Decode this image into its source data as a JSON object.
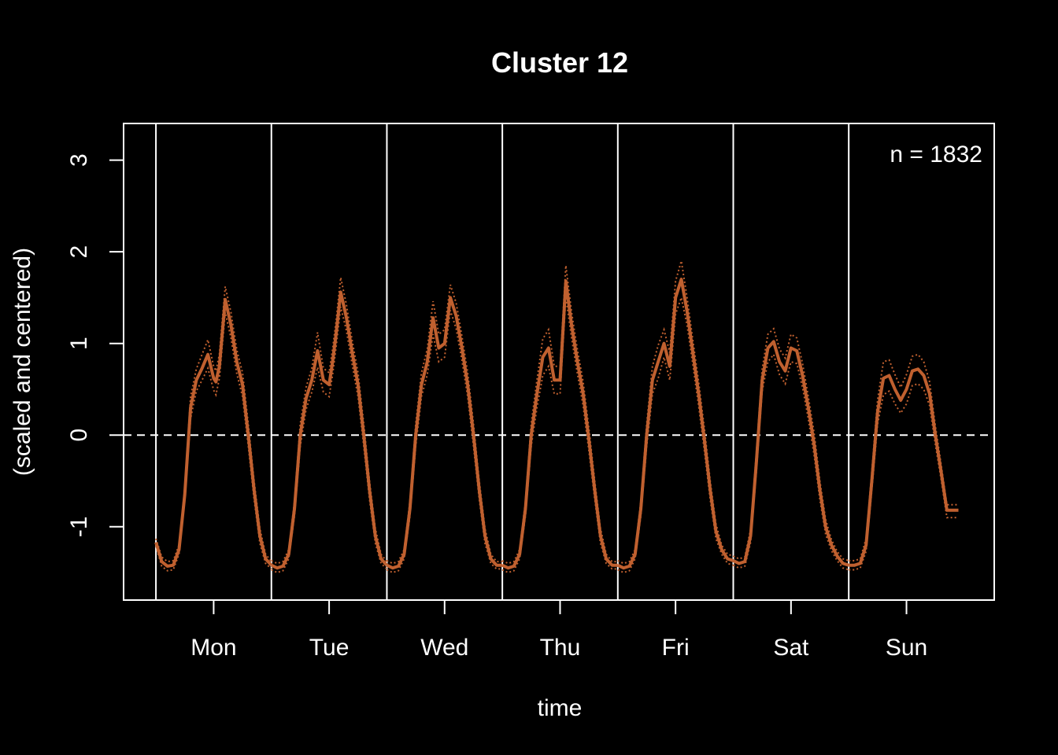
{
  "chart_data": {
    "type": "line",
    "title": "Cluster 12",
    "xlabel": "time",
    "ylabel_line1": "",
    "ylabel_line2": "(scaled and centered)",
    "annotation": "n = 1832",
    "x_tick_labels": [
      "Mon",
      "Tue",
      "Wed",
      "Thu",
      "Fri",
      "Sat",
      "Sun"
    ],
    "y_ticks": [
      -1,
      0,
      1,
      2,
      3
    ],
    "y_tick_labels": [
      "-1",
      "0",
      "1",
      "2",
      "3"
    ],
    "ylim": [
      -1.8,
      3.4
    ],
    "xlim": [
      -0.28,
      7.26
    ],
    "reference_line": 0,
    "day_separators": [
      0,
      1,
      2,
      3,
      4,
      5,
      6
    ],
    "line_color": "#c0602f",
    "band_color": "#c0602f",
    "frame_color": "#ffffff",
    "background": "#000000",
    "day_profiles": [
      {
        "day": "Mon",
        "x": [
          0.0,
          0.05,
          0.1,
          0.15,
          0.2,
          0.25,
          0.3,
          0.35,
          0.4,
          0.45,
          0.5,
          0.52,
          0.55,
          0.6,
          0.65,
          0.7,
          0.75,
          0.8,
          0.85,
          0.9,
          0.95,
          1.0
        ],
        "y": [
          -1.17,
          -1.38,
          -1.43,
          -1.42,
          -1.25,
          -0.65,
          0.3,
          0.6,
          0.73,
          0.88,
          0.62,
          0.58,
          0.75,
          1.48,
          1.2,
          0.8,
          0.55,
          0.0,
          -0.6,
          -1.1,
          -1.35,
          -1.42
        ],
        "hi": [
          -1.13,
          -1.33,
          -1.38,
          -1.37,
          -1.2,
          -0.58,
          0.42,
          0.72,
          0.88,
          1.04,
          0.75,
          0.7,
          0.88,
          1.62,
          1.34,
          0.93,
          0.68,
          0.12,
          -0.5,
          -1.02,
          -1.3,
          -1.38
        ],
        "lo": [
          -1.21,
          -1.43,
          -1.48,
          -1.47,
          -1.3,
          -0.72,
          0.18,
          0.48,
          0.6,
          0.73,
          0.49,
          0.44,
          0.62,
          1.34,
          1.06,
          0.67,
          0.42,
          -0.12,
          -0.7,
          -1.18,
          -1.4,
          -1.46
        ]
      },
      {
        "day": "Tue",
        "x": [
          0.0,
          0.05,
          0.1,
          0.15,
          0.2,
          0.25,
          0.3,
          0.35,
          0.4,
          0.45,
          0.5,
          0.53,
          0.56,
          0.6,
          0.65,
          0.7,
          0.75,
          0.8,
          0.85,
          0.9,
          0.95,
          1.0
        ],
        "y": [
          -1.42,
          -1.45,
          -1.43,
          -1.3,
          -0.8,
          0.0,
          0.4,
          0.6,
          0.92,
          0.6,
          0.55,
          0.8,
          1.1,
          1.56,
          1.28,
          0.9,
          0.55,
          0.0,
          -0.6,
          -1.1,
          -1.35,
          -1.42
        ],
        "hi": [
          -1.37,
          -1.4,
          -1.38,
          -1.25,
          -0.72,
          0.12,
          0.52,
          0.73,
          1.12,
          0.73,
          0.68,
          0.94,
          1.24,
          1.72,
          1.42,
          1.03,
          0.68,
          0.12,
          -0.5,
          -1.02,
          -1.3,
          -1.38
        ],
        "lo": [
          -1.47,
          -1.5,
          -1.48,
          -1.35,
          -0.88,
          -0.12,
          0.28,
          0.47,
          0.74,
          0.47,
          0.42,
          0.66,
          0.96,
          1.4,
          1.14,
          0.77,
          0.42,
          -0.12,
          -0.7,
          -1.18,
          -1.4,
          -1.46
        ]
      },
      {
        "day": "Wed",
        "x": [
          0.0,
          0.05,
          0.1,
          0.15,
          0.2,
          0.25,
          0.3,
          0.35,
          0.4,
          0.45,
          0.5,
          0.55,
          0.6,
          0.65,
          0.7,
          0.75,
          0.8,
          0.85,
          0.9,
          0.95,
          1.0
        ],
        "y": [
          -1.42,
          -1.45,
          -1.43,
          -1.3,
          -0.8,
          0.0,
          0.55,
          0.8,
          1.28,
          0.95,
          1.0,
          1.5,
          1.3,
          0.95,
          0.55,
          0.0,
          -0.6,
          -1.1,
          -1.35,
          -1.42,
          -1.42
        ],
        "hi": [
          -1.37,
          -1.4,
          -1.38,
          -1.25,
          -0.72,
          0.12,
          0.68,
          0.94,
          1.46,
          1.1,
          1.15,
          1.64,
          1.44,
          1.08,
          0.68,
          0.12,
          -0.5,
          -1.02,
          -1.3,
          -1.38,
          -1.38
        ],
        "lo": [
          -1.47,
          -1.5,
          -1.48,
          -1.35,
          -0.88,
          -0.12,
          0.42,
          0.66,
          1.1,
          0.8,
          0.85,
          1.36,
          1.16,
          0.82,
          0.42,
          -0.12,
          -0.7,
          -1.18,
          -1.4,
          -1.46,
          -1.46
        ]
      },
      {
        "day": "Thu",
        "x": [
          0.0,
          0.05,
          0.1,
          0.15,
          0.2,
          0.25,
          0.3,
          0.35,
          0.4,
          0.45,
          0.5,
          0.55,
          0.6,
          0.65,
          0.7,
          0.75,
          0.8,
          0.85,
          0.9,
          0.95,
          1.0
        ],
        "y": [
          -1.42,
          -1.45,
          -1.43,
          -1.3,
          -0.8,
          0.0,
          0.45,
          0.85,
          0.95,
          0.6,
          0.6,
          1.68,
          1.2,
          0.8,
          0.45,
          -0.05,
          -0.6,
          -1.1,
          -1.35,
          -1.42,
          -1.42
        ],
        "hi": [
          -1.37,
          -1.4,
          -1.38,
          -1.25,
          -0.72,
          0.12,
          0.6,
          1.05,
          1.15,
          0.75,
          0.75,
          1.85,
          1.34,
          0.93,
          0.58,
          0.07,
          -0.5,
          -1.02,
          -1.3,
          -1.38,
          -1.38
        ],
        "lo": [
          -1.47,
          -1.5,
          -1.48,
          -1.35,
          -0.88,
          -0.12,
          0.3,
          0.65,
          0.75,
          0.45,
          0.45,
          1.51,
          1.06,
          0.67,
          0.32,
          -0.17,
          -0.7,
          -1.18,
          -1.4,
          -1.46,
          -1.46
        ]
      },
      {
        "day": "Fri",
        "x": [
          0.0,
          0.05,
          0.1,
          0.15,
          0.2,
          0.25,
          0.3,
          0.35,
          0.4,
          0.45,
          0.5,
          0.55,
          0.6,
          0.65,
          0.7,
          0.75,
          0.8,
          0.85,
          0.9,
          0.95,
          1.0
        ],
        "y": [
          -1.42,
          -1.45,
          -1.43,
          -1.3,
          -0.8,
          0.0,
          0.6,
          0.8,
          1.0,
          0.75,
          1.5,
          1.7,
          1.35,
          0.9,
          0.45,
          -0.05,
          -0.6,
          -1.05,
          -1.25,
          -1.35,
          -1.37
        ],
        "hi": [
          -1.37,
          -1.4,
          -1.38,
          -1.25,
          -0.72,
          0.12,
          0.75,
          0.98,
          1.15,
          0.9,
          1.68,
          1.9,
          1.5,
          1.03,
          0.58,
          0.07,
          -0.5,
          -0.97,
          -1.2,
          -1.3,
          -1.32
        ],
        "lo": [
          -1.47,
          -1.5,
          -1.48,
          -1.35,
          -0.88,
          -0.12,
          0.45,
          0.62,
          0.85,
          0.6,
          1.32,
          1.5,
          1.2,
          0.77,
          0.32,
          -0.17,
          -0.7,
          -1.13,
          -1.3,
          -1.4,
          -1.42
        ]
      },
      {
        "day": "Sat",
        "x": [
          0.0,
          0.05,
          0.1,
          0.15,
          0.2,
          0.25,
          0.3,
          0.35,
          0.4,
          0.45,
          0.5,
          0.55,
          0.6,
          0.65,
          0.7,
          0.75,
          0.8,
          0.85,
          0.9,
          0.95,
          1.0
        ],
        "y": [
          -1.37,
          -1.4,
          -1.38,
          -1.1,
          -0.3,
          0.6,
          0.95,
          1.02,
          0.8,
          0.7,
          0.95,
          0.92,
          0.65,
          0.3,
          -0.1,
          -0.6,
          -1.0,
          -1.2,
          -1.32,
          -1.4,
          -1.42
        ],
        "hi": [
          -1.32,
          -1.35,
          -1.33,
          -1.03,
          -0.2,
          0.72,
          1.1,
          1.16,
          0.94,
          0.84,
          1.1,
          1.06,
          0.78,
          0.42,
          0.02,
          -0.5,
          -0.92,
          -1.14,
          -1.27,
          -1.35,
          -1.37
        ],
        "lo": [
          -1.42,
          -1.45,
          -1.43,
          -1.17,
          -0.4,
          0.48,
          0.8,
          0.88,
          0.66,
          0.56,
          0.8,
          0.78,
          0.52,
          0.18,
          -0.22,
          -0.7,
          -1.08,
          -1.26,
          -1.37,
          -1.45,
          -1.47
        ]
      },
      {
        "day": "Sun",
        "x": [
          0.0,
          0.05,
          0.1,
          0.15,
          0.2,
          0.25,
          0.3,
          0.35,
          0.4,
          0.45,
          0.5,
          0.55,
          0.6,
          0.65,
          0.7,
          0.75,
          0.8,
          0.85,
          0.9,
          0.95
        ],
        "y": [
          -1.42,
          -1.42,
          -1.4,
          -1.2,
          -0.5,
          0.25,
          0.62,
          0.65,
          0.5,
          0.38,
          0.5,
          0.7,
          0.72,
          0.65,
          0.45,
          0.0,
          -0.4,
          -0.82,
          -0.82,
          -0.82
        ],
        "hi": [
          -1.37,
          -1.37,
          -1.35,
          -1.13,
          -0.4,
          0.38,
          0.8,
          0.82,
          0.66,
          0.52,
          0.66,
          0.86,
          0.88,
          0.8,
          0.58,
          0.1,
          -0.32,
          -0.76,
          -0.76,
          -0.76
        ],
        "lo": [
          -1.47,
          -1.47,
          -1.45,
          -1.27,
          -0.6,
          0.12,
          0.44,
          0.48,
          0.34,
          0.24,
          0.34,
          0.54,
          0.56,
          0.5,
          0.32,
          -0.1,
          -0.48,
          -0.9,
          -0.9,
          -0.9
        ]
      }
    ]
  }
}
